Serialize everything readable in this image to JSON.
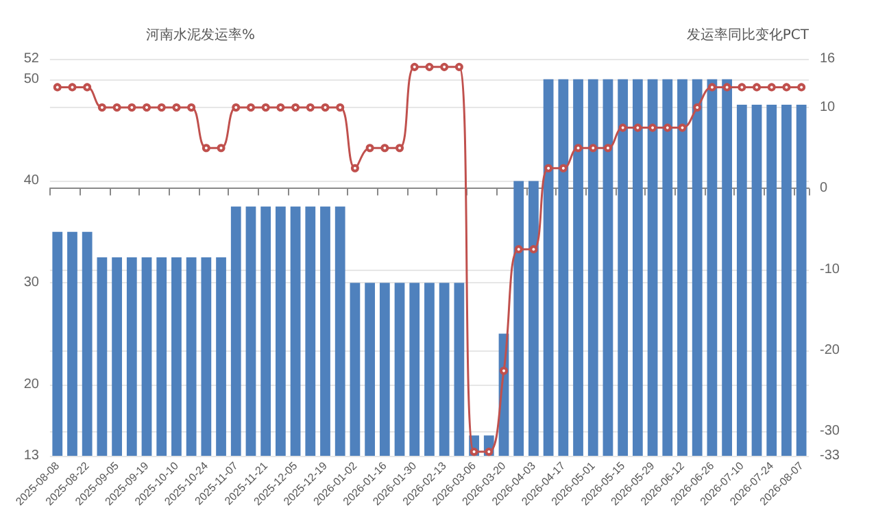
{
  "chart_data": {
    "type": "bar",
    "ylabel": "河南水泥发运率%",
    "y2label": "发运率同比变化PCT",
    "categories": [
      "2025-08-08",
      null,
      "2025-08-22",
      null,
      "2025-09-05",
      null,
      "2025-09-19",
      null,
      "2025-10-10",
      null,
      "2025-10-24",
      null,
      "2025-11-07",
      null,
      "2025-11-21",
      null,
      "2025-12-05",
      null,
      "2025-12-19",
      null,
      "2026-01-02",
      null,
      "2026-01-16",
      null,
      "2026-01-30",
      null,
      "2026-02-13",
      null,
      "2026-03-06",
      null,
      "2026-03-20",
      null,
      "2026-04-03",
      null,
      "2026-04-17",
      null,
      "2026-05-01",
      null,
      "2026-05-15",
      null,
      "2026-05-29",
      null,
      "2026-06-12",
      null,
      "2026-06-26",
      null,
      "2026-07-10",
      null,
      "2026-07-24",
      null,
      "2026-08-07"
    ],
    "series": [
      {
        "color": "#4f81bd",
        "values": [
          35,
          35,
          35,
          32.5,
          32.5,
          32.5,
          32.5,
          32.5,
          32.5,
          32.5,
          32.5,
          32.5,
          37.5,
          37.5,
          37.5,
          37.5,
          37.5,
          37.5,
          37.5,
          37.5,
          30,
          30,
          30,
          30,
          30,
          30,
          30,
          30,
          15,
          15,
          25,
          40,
          40,
          50,
          50,
          50,
          50,
          50,
          50,
          50,
          50,
          50,
          50,
          50,
          50,
          50,
          47.5,
          47.5,
          47.5,
          47.5,
          47.5
        ]
      },
      {
        "type": "line",
        "axis": "y2",
        "color": "#c0504d",
        "marker": "circle",
        "values": [
          12.5,
          12.5,
          12.5,
          10,
          10,
          10,
          10,
          10,
          10,
          10,
          5,
          5,
          10,
          10,
          10,
          10,
          10,
          10,
          10,
          10,
          2.5,
          5,
          5,
          5,
          15,
          15,
          15,
          15,
          -32.5,
          -32.5,
          -22.5,
          -7.5,
          -7.5,
          2.5,
          2.5,
          5,
          5,
          5,
          7.5,
          7.5,
          7.5,
          7.5,
          7.5,
          10,
          12.5,
          12.5,
          12.5,
          12.5,
          12.5,
          12.5,
          12.5
        ]
      }
    ],
    "ylim": [
      13,
      52
    ],
    "yticks": [
      13,
      20,
      30,
      40,
      50,
      52
    ],
    "y2lim": [
      -33,
      16
    ],
    "y2ticks": [
      -33,
      -30,
      -20,
      -10,
      0,
      10,
      16
    ],
    "grid": "y"
  }
}
